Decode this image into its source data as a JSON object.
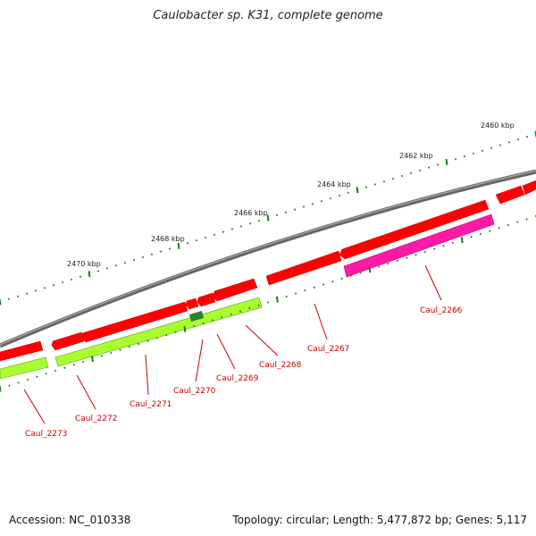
{
  "title": "Caulobacter sp. K31, complete genome",
  "footer": {
    "accession": "Accession: NC_010338",
    "summary": "Topology: circular; Length: 5,477,872 bp; Genes: 5,117"
  },
  "colors": {
    "backbone": "#808080",
    "forward_gene": "#ff0000",
    "rrna_like": "#ff1aa6",
    "reverse_track": "#a8ff30",
    "highlight": "#2e7d32",
    "tick": "#1b7a1b",
    "label": "#cc0000"
  },
  "scale_labels": [
    "2460 kbp",
    "2462 kbp",
    "2464 kbp",
    "2466 kbp",
    "2468 kbp",
    "2470 kbp"
  ],
  "gene_labels": [
    "Caul_2266",
    "Caul_2267",
    "Caul_2268",
    "Caul_2269",
    "Caul_2270",
    "Caul_2271",
    "Caul_2272",
    "Caul_2273"
  ]
}
